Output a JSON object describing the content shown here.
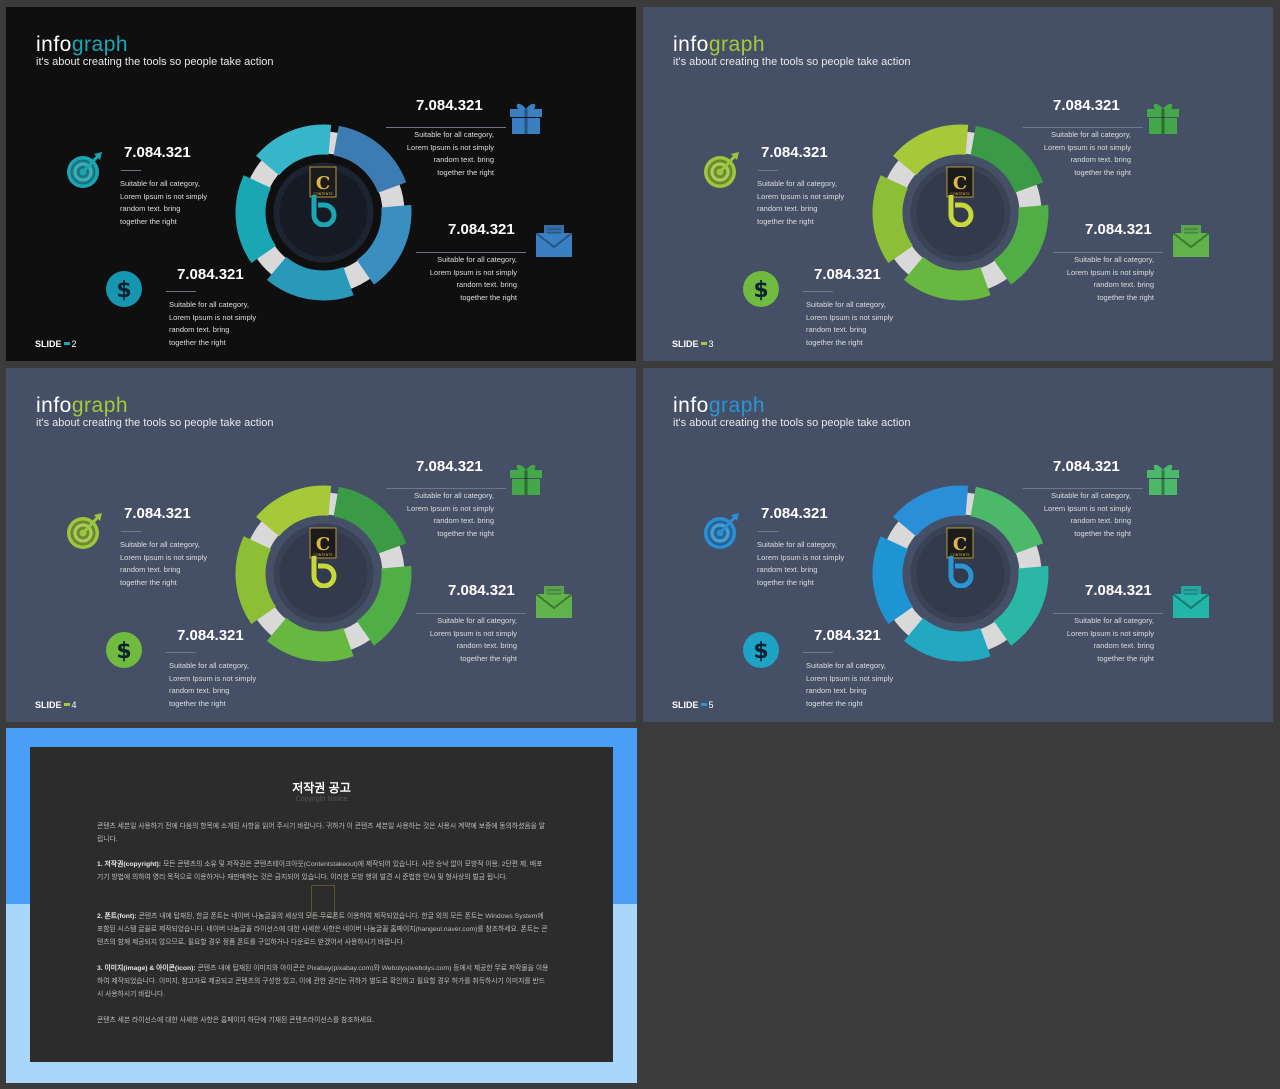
{
  "slides": [
    {
      "id": "slide-2",
      "theme": "dark",
      "title_a": "info",
      "title_b": "graph",
      "subtitle": "it's about creating the tools so people take action",
      "label": "SLIDE",
      "number": "2",
      "colors": {
        "bg": "#0f0f10",
        "accent": "#1ba6b4",
        "seg": [
          "#3d7cb3",
          "#3a8fc0",
          "#2a98b8",
          "#1ba6b4",
          "#36b6c8"
        ],
        "gift": "#3a7fc1",
        "target": "#3a7fc1",
        "mail": "#1ba6b4",
        "dollar": "#1796b0",
        "logo_b": "#1ba6b4"
      },
      "items": [
        {
          "value": "7.084.321",
          "text": [
            "Suitable for all category,",
            "Lorem Ipsum is not simply",
            "random text. bring",
            "together the right"
          ]
        },
        {
          "value": "7.084.321",
          "text": [
            "Suitable for all category,",
            "Lorem Ipsum is not simply",
            "random text. bring",
            "together the right"
          ]
        },
        {
          "value": "7.084.321",
          "text": [
            "Suitable for all category,",
            "Lorem Ipsum is not simply",
            "random text. bring",
            "together the right"
          ]
        },
        {
          "value": "7.084.321",
          "text": [
            "Suitable for all category,",
            "Lorem Ipsum is not simply",
            "random text. bring",
            "together the right"
          ]
        }
      ]
    },
    {
      "id": "slide-3",
      "theme": "slate",
      "title_a": "info",
      "title_b": "graph",
      "subtitle": "it's about creating the tools so people take action",
      "label": "SLIDE",
      "number": "3",
      "colors": {
        "bg": "#454f66",
        "accent": "#a6c93a",
        "seg": [
          "#3a9a46",
          "#4fae45",
          "#66b840",
          "#8dbf36",
          "#a6c93a"
        ],
        "gift": "#44a74a",
        "target": "#5fb34a",
        "mail": "#9dc63f",
        "dollar": "#6fba3f",
        "logo_b": "#c8d83a"
      },
      "items": [
        {
          "value": "7.084.321",
          "text": [
            "Suitable for all category,",
            "Lorem Ipsum is not simply",
            "random text. bring",
            "together the right"
          ]
        },
        {
          "value": "7.084.321",
          "text": [
            "Suitable for all category,",
            "Lorem Ipsum is not simply",
            "random text. bring",
            "together the right"
          ]
        },
        {
          "value": "7.084.321",
          "text": [
            "Suitable for all category,",
            "Lorem Ipsum is not simply",
            "random text. bring",
            "together the right"
          ]
        },
        {
          "value": "7.084.321",
          "text": [
            "Suitable for all category,",
            "Lorem Ipsum is not simply",
            "random text. bring",
            "together the right"
          ]
        }
      ]
    },
    {
      "id": "slide-4",
      "theme": "slate",
      "title_a": "info",
      "title_b": "graph",
      "subtitle": "it's about creating the tools so people take action",
      "label": "SLIDE",
      "number": "4",
      "colors": {
        "bg": "#454f66",
        "accent": "#a6c93a",
        "seg": [
          "#3a9a46",
          "#4fae45",
          "#66b840",
          "#8dbf36",
          "#a6c93a"
        ],
        "gift": "#44a74a",
        "target": "#5fb34a",
        "mail": "#9dc63f",
        "dollar": "#6fba3f",
        "logo_b": "#c8d83a"
      },
      "items": [
        {
          "value": "7.084.321",
          "text": [
            "Suitable for all category,",
            "Lorem Ipsum is not simply",
            "random text. bring",
            "together the right"
          ]
        },
        {
          "value": "7.084.321",
          "text": [
            "Suitable for all category,",
            "Lorem Ipsum is not simply",
            "random text. bring",
            "together the right"
          ]
        },
        {
          "value": "7.084.321",
          "text": [
            "Suitable for all category,",
            "Lorem Ipsum is not simply",
            "random text. bring",
            "together the right"
          ]
        },
        {
          "value": "7.084.321",
          "text": [
            "Suitable for all category,",
            "Lorem Ipsum is not simply",
            "random text. bring",
            "together the right"
          ]
        }
      ]
    },
    {
      "id": "slide-5",
      "theme": "slate",
      "title_a": "info",
      "title_b": "graph",
      "subtitle": "it's about creating the tools so people take action",
      "label": "SLIDE",
      "number": "5",
      "colors": {
        "bg": "#454f66",
        "accent": "#2a95d4",
        "seg": [
          "#4cb86a",
          "#2bb7a6",
          "#22a8c0",
          "#1e95d2",
          "#2a8fd6"
        ],
        "gift": "#4cb86a",
        "target": "#22b5a8",
        "mail": "#2a8fd6",
        "dollar": "#1ea3c5",
        "logo_b": "#2a95d4"
      },
      "items": [
        {
          "value": "7.084.321",
          "text": [
            "Suitable for all category,",
            "Lorem Ipsum is not simply",
            "random text. bring",
            "together the right"
          ]
        },
        {
          "value": "7.084.321",
          "text": [
            "Suitable for all category,",
            "Lorem Ipsum is not simply",
            "random text. bring",
            "together the right"
          ]
        },
        {
          "value": "7.084.321",
          "text": [
            "Suitable for all category,",
            "Lorem Ipsum is not simply",
            "random text. bring",
            "together the right"
          ]
        },
        {
          "value": "7.084.321",
          "text": [
            "Suitable for all category,",
            "Lorem Ipsum is not simply",
            "random text. bring",
            "together the right"
          ]
        }
      ]
    }
  ],
  "icons": [
    "gift-icon",
    "target-icon",
    "mail-icon",
    "dollar-icon"
  ],
  "logo": {
    "letter": "C",
    "caption": "CONTENTS"
  },
  "notice": {
    "title": "저작권 공고",
    "subtitle": "Copyright Notice",
    "intro": "콘텐츠 세븐일 사용하기 전에 다음의 항목에 소개된 사항을 읽어 주시기 바랍니다. 귀하가 이 콘텐츠 세븐일 사용하는 것은 사용시 계약에 보증에 동의하셨음을 알립니다.",
    "s1_head": "1. 저작권(copyright):",
    "s1_body": "모든 콘텐츠의 소유 및 저작권은 콘텐츠테이크아웃(Contentstakeout)에 제작되어 있습니다. 사전 승낙 없이 모방적 이용, 2단편 제, 배포 기기 방법에 의하여 영리 목적으로 이용하거나 재판매하는 것은 금지되어 있습니다. 이러한 모방 행위 발견 시 준법한 민사 및 형사상의 벌금 됩니다.",
    "s2_head": "2. 폰트(font):",
    "s2_body": "콘텐츠 내에 탑재된, 한글 폰트는 네이버 나눔글꼴의 세상의 모든 무료폰트 이용하여 제작되었습니다. 한글 외의 모든 폰트는 Windows System에 포함된 시스템 글꼴로 제작되었습니다. 네이버 나눔글꼴 라이선스에 대한 사세한 사항은 네이버 나눔글꼴 홈페이지(hangeul.naver.com)를 참조하세요. 폰트는 콘텐츠의 함께 제공되지 않으므로, 필요할 경우 정품 폰트를 구입하거나 다운로드 받겠어서 사용하시기 바랍니다.",
    "s3_head": "3. 이미지(image) & 아이콘(icon):",
    "s3_body": "콘텐츠 내에 탑재된 이미지와 아이콘은 Pixabay(pixabay.com)와 Webolys(webolys.com) 등에서 제공한 무료 저작물을 이용하여 제작되었습니다. 이미지, 참고자료 제공되고 콘텐츠의 구성한 있고, 이에 관한 권리는 귀하가 별도로 확인하고 필요할 경우 허가를 취득하시기 이미지를 반드시 사용하시기 바랍니다.",
    "outro": "콘텐츠 세븐 라이선스에 대한 사세한 사항은 홈페이지 하단에 기재된 콘텐츠라이선스를 참조하세요."
  }
}
